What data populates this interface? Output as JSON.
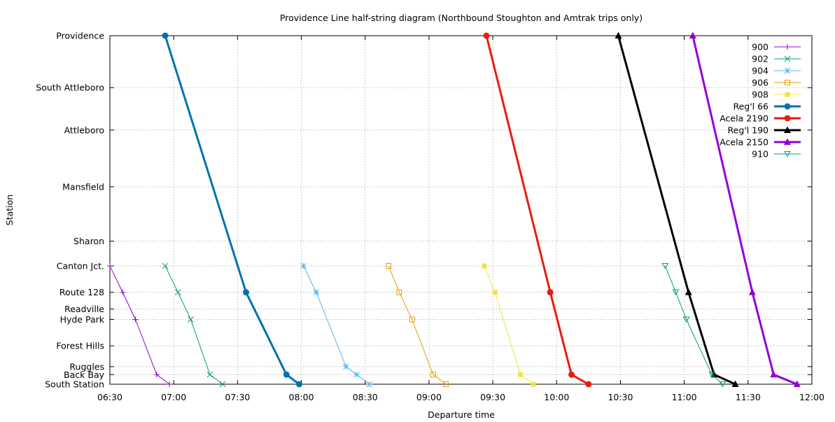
{
  "chart_data": {
    "type": "line",
    "title": "Providence Line half-string diagram (Northbound Stoughton and Amtrak trips only)",
    "xlabel": "Departure time",
    "ylabel": "Station",
    "xlim": [
      "06:30",
      "12:00"
    ],
    "x_ticks": [
      "06:30",
      "07:00",
      "07:30",
      "08:00",
      "08:30",
      "09:00",
      "09:30",
      "10:00",
      "10:30",
      "11:00",
      "11:30",
      "12:00"
    ],
    "stations": [
      {
        "name": "Providence",
        "mile": 43.6
      },
      {
        "name": "South Attleboro",
        "mile": 37.1
      },
      {
        "name": "Attleboro",
        "mile": 31.8
      },
      {
        "name": "Mansfield",
        "mile": 24.7
      },
      {
        "name": "Sharon",
        "mile": 17.9
      },
      {
        "name": "Canton Jct.",
        "mile": 14.8
      },
      {
        "name": "Route 128",
        "mile": 11.5
      },
      {
        "name": "Readville",
        "mile": 9.4
      },
      {
        "name": "Hyde Park",
        "mile": 8.1
      },
      {
        "name": "Forest Hills",
        "mile": 4.8
      },
      {
        "name": "Ruggles",
        "mile": 2.2
      },
      {
        "name": "Back Bay",
        "mile": 1.2
      },
      {
        "name": "South Station",
        "mile": 0
      }
    ],
    "grid": true,
    "legend_position": "top-right",
    "series": [
      {
        "name": "900",
        "color": "#9400d3",
        "marker": "plus",
        "width": 1,
        "points": [
          [
            "06:30",
            "Canton Jct."
          ],
          [
            "06:36",
            "Route 128"
          ],
          [
            "06:42",
            "Hyde Park"
          ],
          [
            "06:52",
            "Back Bay"
          ],
          [
            "06:58",
            "South Station"
          ]
        ]
      },
      {
        "name": "902",
        "color": "#009e73",
        "marker": "cross",
        "width": 1,
        "points": [
          [
            "06:56",
            "Canton Jct."
          ],
          [
            "07:02",
            "Route 128"
          ],
          [
            "07:08",
            "Hyde Park"
          ],
          [
            "07:17",
            "Back Bay"
          ],
          [
            "07:23",
            "South Station"
          ]
        ]
      },
      {
        "name": "904",
        "color": "#56b4e9",
        "marker": "star",
        "width": 1,
        "points": [
          [
            "08:01",
            "Canton Jct."
          ],
          [
            "08:07",
            "Route 128"
          ],
          [
            "08:21",
            "Ruggles"
          ],
          [
            "08:26",
            "Back Bay"
          ],
          [
            "08:32",
            "South Station"
          ]
        ]
      },
      {
        "name": "906",
        "color": "#e69f00",
        "marker": "square-open",
        "width": 1,
        "points": [
          [
            "08:41",
            "Canton Jct."
          ],
          [
            "08:46",
            "Route 128"
          ],
          [
            "08:52",
            "Hyde Park"
          ],
          [
            "09:02",
            "Back Bay"
          ],
          [
            "09:08",
            "South Station"
          ]
        ]
      },
      {
        "name": "908",
        "color": "#f0e442",
        "marker": "square-filled",
        "width": 1,
        "points": [
          [
            "09:26",
            "Canton Jct."
          ],
          [
            "09:31",
            "Route 128"
          ],
          [
            "09:43",
            "Back Bay"
          ],
          [
            "09:49",
            "South Station"
          ]
        ]
      },
      {
        "name": "Reg'l 66",
        "color": "#0072b2",
        "marker": "circle-filled",
        "width": 3,
        "points": [
          [
            "06:56",
            "Providence"
          ],
          [
            "07:34",
            "Route 128"
          ],
          [
            "07:53",
            "Back Bay"
          ],
          [
            "07:59",
            "South Station"
          ]
        ]
      },
      {
        "name": "Acela 2190",
        "color": "#e51e10",
        "marker": "circle-filled",
        "width": 3,
        "points": [
          [
            "09:27",
            "Providence"
          ],
          [
            "09:57",
            "Route 128"
          ],
          [
            "10:07",
            "Back Bay"
          ],
          [
            "10:15",
            "South Station"
          ]
        ]
      },
      {
        "name": "Reg'l 190",
        "color": "#000000",
        "marker": "triangle-filled",
        "width": 3,
        "points": [
          [
            "10:29",
            "Providence"
          ],
          [
            "11:02",
            "Route 128"
          ],
          [
            "11:14",
            "Back Bay"
          ],
          [
            "11:24",
            "South Station"
          ]
        ]
      },
      {
        "name": "Acela 2150",
        "color": "#9400d3",
        "marker": "triangle-filled",
        "width": 3,
        "points": [
          [
            "11:04",
            "Providence"
          ],
          [
            "11:32",
            "Route 128"
          ],
          [
            "11:42",
            "Back Bay"
          ],
          [
            "11:53",
            "South Station"
          ]
        ]
      },
      {
        "name": "910",
        "color": "#009e73",
        "marker": "triangle-down-open",
        "width": 1,
        "points": [
          [
            "10:51",
            "Canton Jct."
          ],
          [
            "10:56",
            "Route 128"
          ],
          [
            "11:01",
            "Hyde Park"
          ],
          [
            "11:13",
            "Back Bay"
          ],
          [
            "11:18",
            "South Station"
          ]
        ]
      }
    ]
  }
}
